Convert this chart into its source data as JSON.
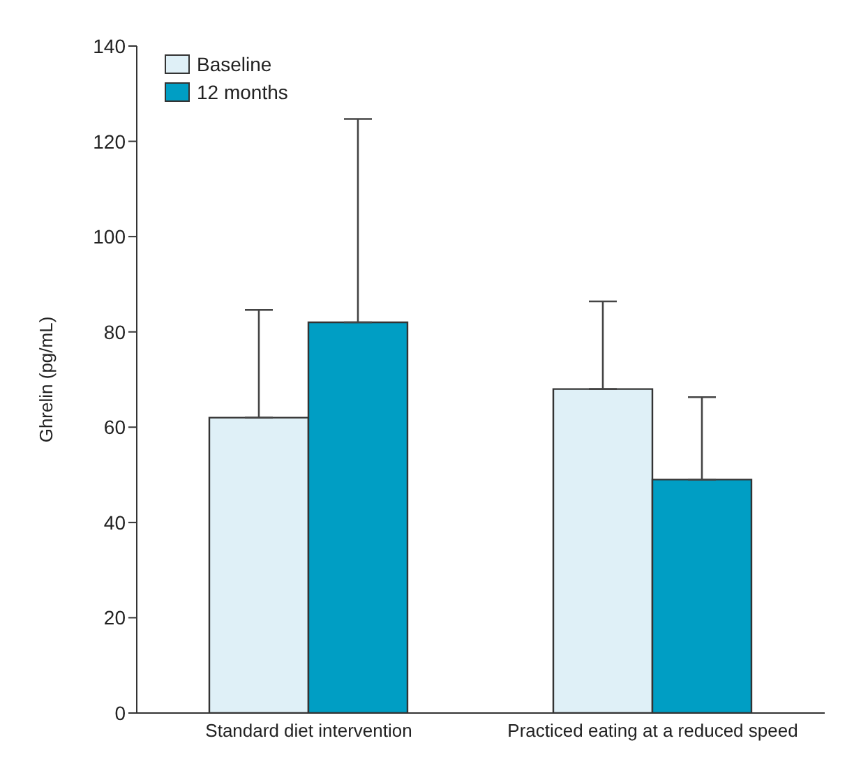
{
  "chart_data": {
    "type": "bar",
    "ylabel": "Ghrelin (pg/mL)",
    "categories": [
      "Standard diet intervention",
      "Practiced eating at a reduced speed"
    ],
    "series": [
      {
        "name": "Baseline",
        "color": "#dff0f7",
        "values": [
          62,
          68
        ],
        "errors": [
          [
            62,
            84.6
          ],
          [
            68,
            86.4
          ]
        ]
      },
      {
        "name": "12 months",
        "color": "#009ec4",
        "values": [
          82,
          49
        ],
        "errors": [
          [
            82,
            124.7
          ],
          [
            49,
            66.3
          ]
        ]
      }
    ],
    "ylim": [
      0,
      140
    ],
    "yticks": [
      0,
      20,
      40,
      60,
      80,
      100,
      120,
      140
    ],
    "grid": false,
    "legend": "top left"
  }
}
